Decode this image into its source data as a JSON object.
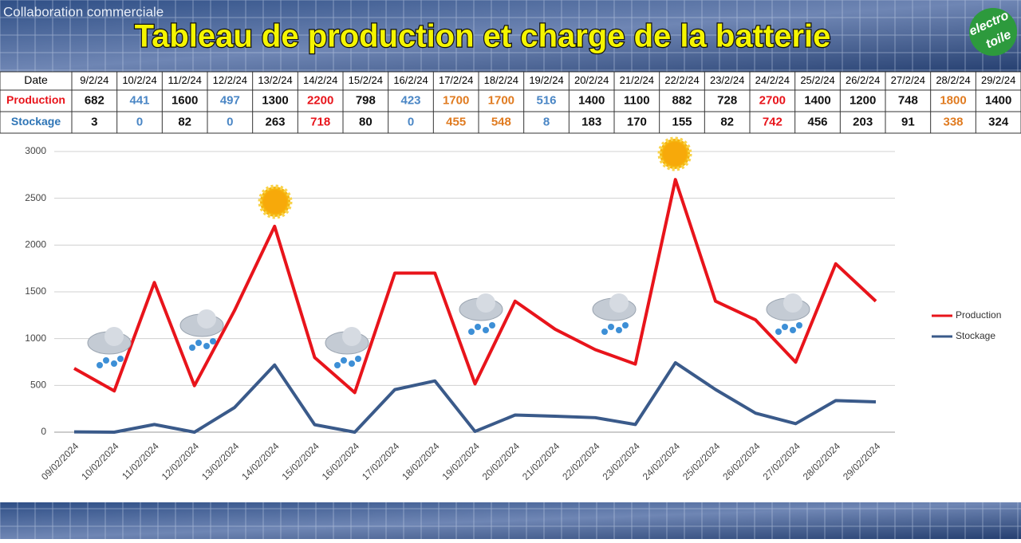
{
  "header": {
    "caption": "Collaboration commerciale",
    "title": "Tableau de production et charge de la batterie",
    "logo": [
      "electro",
      "toile"
    ]
  },
  "table": {
    "date_label": "Date",
    "dates": [
      "9/2/24",
      "10/2/24",
      "11/2/24",
      "12/2/24",
      "13/2/24",
      "14/2/24",
      "15/2/24",
      "16/2/24",
      "17/2/24",
      "18/2/24",
      "19/2/24",
      "20/2/24",
      "21/2/24",
      "22/2/24",
      "23/2/24",
      "24/2/24",
      "25/2/24",
      "26/2/24",
      "27/2/24",
      "28/2/24",
      "29/2/24"
    ]
  },
  "chart_data": {
    "type": "line",
    "categories": [
      "09/02/2024",
      "10/02/2024",
      "11/02/2024",
      "12/02/2024",
      "13/02/2024",
      "14/02/2024",
      "15/02/2024",
      "16/02/2024",
      "17/02/2024",
      "18/02/2024",
      "19/02/2024",
      "20/02/2024",
      "21/02/2024",
      "22/02/2024",
      "23/02/2024",
      "24/02/2024",
      "25/02/2024",
      "26/02/2024",
      "27/02/2024",
      "28/02/2024",
      "29/02/2024"
    ],
    "series": [
      {
        "name": "Production",
        "color": "#e8141b",
        "values": [
          682,
          441,
          1600,
          497,
          1300,
          2200,
          798,
          423,
          1700,
          1700,
          516,
          1400,
          1100,
          882,
          728,
          2700,
          1400,
          1200,
          748,
          1800,
          1400
        ],
        "value_colors": [
          "#111",
          "#4a86c5",
          "#111",
          "#4a86c5",
          "#111",
          "#e8141b",
          "#111",
          "#4a86c5",
          "#e07b20",
          "#e07b20",
          "#4a86c5",
          "#111",
          "#111",
          "#111",
          "#111",
          "#e8141b",
          "#111",
          "#111",
          "#111",
          "#e07b20",
          "#111"
        ]
      },
      {
        "name": "Stockage",
        "color": "#3a5a8a",
        "values": [
          3,
          0,
          82,
          0,
          263,
          718,
          80,
          0,
          455,
          548,
          8,
          183,
          170,
          155,
          82,
          742,
          456,
          203,
          91,
          338,
          324
        ],
        "value_colors": [
          "#111",
          "#4a86c5",
          "#111",
          "#4a86c5",
          "#111",
          "#e8141b",
          "#111",
          "#4a86c5",
          "#e07b20",
          "#e07b20",
          "#4a86c5",
          "#111",
          "#111",
          "#111",
          "#111",
          "#e8141b",
          "#111",
          "#111",
          "#111",
          "#e07b20",
          "#111"
        ]
      }
    ],
    "ylim": [
      0,
      3000
    ],
    "yticks": [
      0,
      500,
      1000,
      1500,
      2000,
      2500,
      3000
    ],
    "grid": true,
    "legend": "right"
  }
}
